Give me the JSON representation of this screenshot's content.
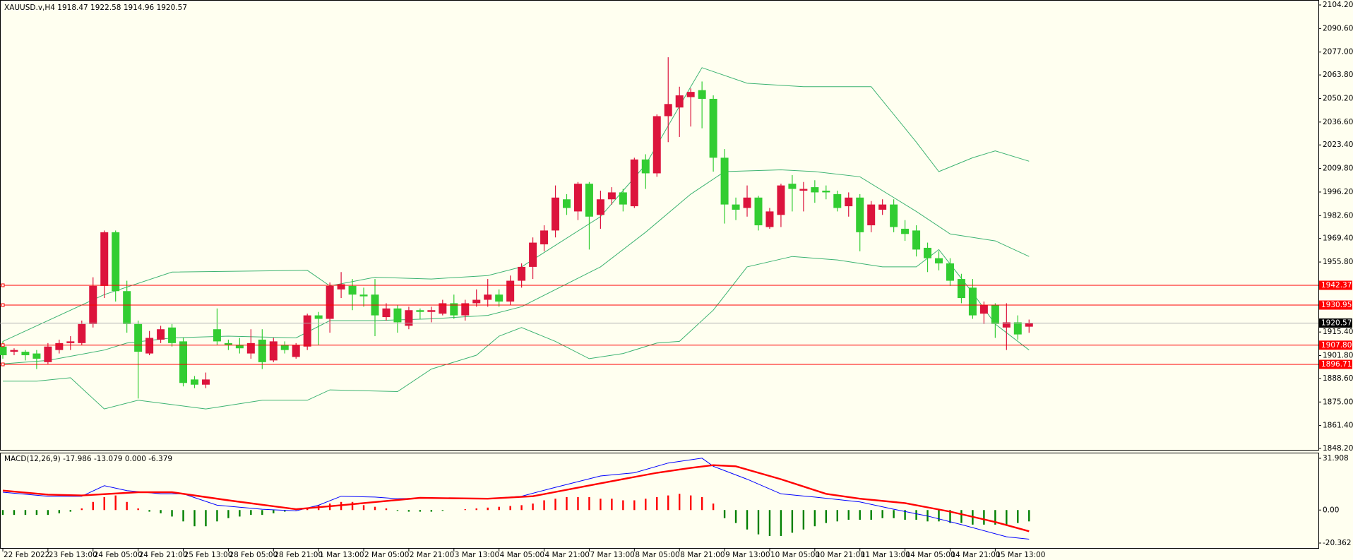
{
  "chart_data": [
    {
      "type": "candlestick",
      "title": "XAUUSD.v,H4  1918.47 1922.58 1914.96 1920.57",
      "categories": [
        "22 Feb 2022",
        null,
        null,
        null,
        "23 Feb 13:00",
        null,
        null,
        null,
        "24 Feb 05:00",
        null,
        null,
        null,
        "24 Feb 21:00",
        null,
        null,
        null,
        "25 Feb 13:00",
        null,
        null,
        null,
        "28 Feb 05:00",
        null,
        null,
        null,
        "28 Feb 21:00",
        null,
        null,
        null,
        "1 Mar 13:00",
        null,
        null,
        null,
        "2 Mar 05:00",
        null,
        null,
        null,
        "2 Mar 21:00",
        null,
        null,
        null,
        "3 Mar 13:00",
        null,
        null,
        null,
        "4 Mar 05:00",
        null,
        null,
        null,
        "4 Mar 21:00",
        null,
        null,
        null,
        "7 Mar 13:00",
        null,
        null,
        null,
        "8 Mar 05:00",
        null,
        null,
        null,
        "8 Mar 21:00",
        null,
        null,
        null,
        "9 Mar 13:00",
        null,
        null,
        null,
        "10 Mar 05:00",
        null,
        null,
        null,
        "10 Mar 21:00",
        null,
        null,
        null,
        "11 Mar 13:00",
        null,
        null,
        null,
        "14 Mar 05:00",
        null,
        null,
        null,
        "14 Mar 21:00",
        null,
        null,
        null,
        "15 Mar 13:00",
        null,
        null,
        null
      ],
      "open": [
        1907,
        1904,
        1904,
        1903,
        1898,
        1905,
        1909,
        1909,
        1920,
        1942,
        1973,
        1939,
        1920,
        1903,
        1911,
        1918,
        1910,
        1888,
        1885,
        1917,
        1909,
        1908,
        1903,
        1911,
        1899,
        1908,
        1901,
        1907,
        1925,
        1923,
        1940,
        1942,
        1937,
        1937,
        1924,
        1929,
        1919,
        1928,
        1927,
        1926,
        1932,
        1925,
        1932,
        1934,
        1937,
        1933,
        1945,
        1953,
        1966,
        1974,
        1992,
        1985,
        2001,
        1983,
        1992,
        1996,
        1988,
        2015,
        2007,
        2040,
        2045,
        2051,
        2055,
        2050,
        2016,
        1989,
        1987,
        1993,
        1976,
        1983,
        2001,
        1997,
        1999,
        1997,
        1995,
        1988,
        1993,
        1977,
        1986,
        1989,
        1975,
        1974,
        1964,
        1958,
        1955,
        1946,
        1941,
        1926,
        1931,
        1918,
        1921,
        1918.47
      ],
      "high": [
        1910,
        1906,
        1905,
        1905,
        1909,
        1911,
        1913,
        1922,
        1947,
        1974,
        1974,
        1945,
        1922,
        1916,
        1919,
        1920,
        1912,
        1890,
        1892,
        1929,
        1911,
        1912,
        1917,
        1917,
        1912,
        1910,
        1909,
        1926,
        1927,
        1944,
        1950,
        1946,
        1941,
        1946,
        1932,
        1931,
        1930,
        1929,
        1930,
        1934,
        1937,
        1934,
        1940,
        1946,
        1940,
        1948,
        1955,
        1970,
        1977,
        2000,
        1995,
        2002,
        2002,
        1997,
        1999,
        1998,
        2016,
        2018,
        2041,
        2074,
        2057,
        2056,
        2060,
        2052,
        2021,
        1993,
        2000,
        1994,
        1987,
        2001,
        2006,
        2002,
        2003,
        2000,
        1997,
        1996,
        1995,
        1991,
        1992,
        1992,
        1980,
        1977,
        1967,
        1962,
        1958,
        1949,
        1946,
        1933,
        1932,
        1932,
        1925,
        1922.58
      ],
      "low": [
        1900,
        1902,
        1899,
        1894,
        1897,
        1903,
        1905,
        1908,
        1918,
        1935,
        1933,
        1915,
        1877,
        1902,
        1909,
        1907,
        1884,
        1883,
        1883,
        1908,
        1905,
        1903,
        1900,
        1894,
        1898,
        1903,
        1900,
        1905,
        1908,
        1915,
        1935,
        1928,
        1930,
        1913,
        1922,
        1915,
        1917,
        1923,
        1921,
        1925,
        1923,
        1922,
        1930,
        1930,
        1930,
        1931,
        1941,
        1946,
        1962,
        1970,
        1983,
        1980,
        1963,
        1975,
        1989,
        1985,
        1987,
        1998,
        2005,
        2025,
        2028,
        2034,
        2033,
        2008,
        1978,
        1980,
        1982,
        1974,
        1975,
        1976,
        1985,
        1985,
        1990,
        1992,
        1985,
        1982,
        1962,
        1973,
        1983,
        1973,
        1968,
        1959,
        1950,
        1951,
        1942,
        1932,
        1923,
        1920,
        1912,
        1905,
        1911,
        1914.96
      ],
      "close": [
        1902,
        1905,
        1902,
        1900,
        1907,
        1909,
        1910,
        1920,
        1942,
        1973,
        1939,
        1920,
        1904,
        1912,
        1917,
        1909,
        1886,
        1885,
        1888,
        1910,
        1908,
        1906,
        1909,
        1898,
        1910,
        1905,
        1908,
        1925,
        1923,
        1942,
        1943,
        1937,
        1936,
        1925,
        1929,
        1921,
        1928,
        1927,
        1928,
        1932,
        1925,
        1932,
        1934,
        1937,
        1933,
        1945,
        1953,
        1967,
        1974,
        1993,
        1987,
        2001,
        1982,
        1992,
        1996,
        1989,
        2015,
        2007,
        2040,
        2047,
        2052,
        2054,
        2050,
        2016,
        1989,
        1986,
        1993,
        1977,
        1985,
        2000,
        1998,
        1998,
        1996,
        1996,
        1987,
        1993,
        1973,
        1989,
        1989,
        1976,
        1972,
        1963,
        1958,
        1955,
        1945,
        1935,
        1925,
        1931,
        1920,
        1921,
        1914,
        1920.57
      ],
      "up_color": "#dc143c",
      "down_color": "#32cd32",
      "bands": [
        {
          "color": "#3cb371",
          "x": [
            0,
            9,
            15,
            27,
            29,
            33,
            38,
            43,
            46,
            53,
            57,
            61,
            62,
            66,
            71,
            77,
            81,
            83,
            86,
            88,
            91
          ],
          "values": [
            1910,
            1937,
            1950,
            1951,
            1942,
            1947,
            1946,
            1948,
            1953,
            1982,
            2012,
            2057,
            2068,
            2059,
            2057,
            2057,
            2025,
            2008,
            2016,
            2020,
            2014
          ]
        },
        {
          "color": "#3cb371",
          "x": [
            0,
            4,
            9,
            11,
            15,
            20,
            26,
            29,
            33,
            38,
            43,
            46,
            53,
            57,
            61,
            64,
            69,
            72,
            76,
            81,
            84,
            88,
            91
          ],
          "values": [
            1897,
            1899,
            1905,
            1909,
            1912,
            1913,
            1912,
            1922,
            1922,
            1923,
            1925,
            1930,
            1953,
            1973,
            1995,
            2008,
            2009,
            2008,
            2005,
            1985,
            1972,
            1968,
            1959
          ]
        },
        {
          "color": "#3cb371",
          "x": [
            0,
            3,
            6,
            9,
            12,
            18,
            23,
            27,
            29,
            35,
            38,
            42,
            44,
            46,
            49,
            52,
            55,
            58,
            60,
            63,
            66,
            70,
            74,
            78,
            81,
            83,
            86,
            88,
            91
          ],
          "values": [
            1887,
            1887,
            1889,
            1871,
            1876,
            1871,
            1876,
            1876,
            1882,
            1881,
            1894,
            1902,
            1913,
            1918,
            1910,
            1900,
            1903,
            1909,
            1910,
            1928,
            1953,
            1959,
            1957,
            1953,
            1953,
            1963,
            1938,
            1920,
            1905
          ]
        }
      ],
      "levels": [
        1942.37,
        1930.95,
        {
          "value": 1907.8,
          "label": "1907.80"
        },
        1896.71
      ],
      "level_color": "#ff0000",
      "current": 1920.57,
      "ylim": [
        1848.2,
        2104.2
      ],
      "yticks": [
        {
          "value": 2104.2,
          "label": "2104.20"
        },
        {
          "value": 2090.6,
          "label": "2090.60"
        },
        {
          "value": 2077,
          "label": "2077.00"
        },
        {
          "value": 2063.8,
          "label": "2063.80"
        },
        {
          "value": 2050.2,
          "label": "2050.20"
        },
        {
          "value": 2036.6,
          "label": "2036.60"
        },
        {
          "value": 2023.4,
          "label": "2023.40"
        },
        {
          "value": 2009.8,
          "label": "2009.80"
        },
        {
          "value": 1996.2,
          "label": "1996.20"
        },
        {
          "value": 1982.6,
          "label": "1982.60"
        },
        {
          "value": 1969.4,
          "label": "1969.40"
        },
        {
          "value": 1955.8,
          "label": "1955.80"
        },
        {
          "value": 1915.4,
          "label": "1915.40"
        },
        {
          "value": 1901.8,
          "label": "1901.80"
        },
        {
          "value": 1888.6,
          "label": "1888.60"
        },
        {
          "value": 1875,
          "label": "1875.00"
        },
        {
          "value": 1861.4,
          "label": "1861.40"
        },
        {
          "value": 1848.2,
          "label": "1848.20"
        }
      ]
    },
    {
      "type": "macd",
      "title": "MACD(12,26,9) -17.986 -13.079 0.000 -6.379",
      "histogram": {
        "up_color": "#ff0000",
        "down_color": "#008000",
        "values": [
          -3,
          -3,
          -3,
          -3,
          -3,
          -2,
          -1,
          1,
          5,
          8,
          9,
          5,
          1,
          -1,
          -2,
          -4,
          -7,
          -10,
          -10,
          -7,
          -5,
          -4,
          -3,
          -3,
          -2,
          -1,
          0.5,
          1.5,
          3,
          4,
          5,
          5,
          3,
          2,
          1,
          -0.5,
          -1,
          -1,
          -1,
          -0.5,
          0,
          0.5,
          1,
          1.5,
          2,
          2.5,
          3,
          4,
          6,
          7,
          8,
          8,
          8,
          7,
          7,
          6,
          6,
          7,
          8,
          9,
          10,
          9,
          8,
          4,
          -5,
          -8,
          -12,
          -15,
          -16,
          -16,
          -14,
          -12,
          -10,
          -8,
          -7,
          -6,
          -6,
          -6,
          -5,
          -5,
          -6,
          -6,
          -7,
          -7,
          -8,
          -8,
          -9,
          -9,
          -9,
          -9,
          -8,
          -7
        ]
      },
      "series": [
        {
          "color": "#0000ff",
          "x": [
            0,
            4,
            7,
            9,
            11,
            14,
            16,
            19,
            23,
            26,
            28,
            30,
            33,
            35,
            38,
            43,
            46,
            49,
            53,
            56,
            59,
            62,
            63,
            66,
            69,
            72,
            76,
            79,
            82,
            85,
            89,
            91
          ],
          "values": [
            11,
            8.5,
            8.5,
            15,
            12,
            10,
            10,
            3,
            0.5,
            -0.5,
            3,
            8.5,
            8,
            7,
            7.5,
            7,
            8.5,
            14,
            21,
            23,
            29,
            32,
            27,
            19,
            10,
            8,
            5,
            0.5,
            -3.7,
            -9,
            -16.5,
            -17.986
          ]
        },
        {
          "color": "#ff0000",
          "x": [
            0,
            4,
            7,
            12,
            15,
            20,
            26,
            30,
            37,
            43,
            47,
            53,
            58,
            61,
            63,
            65,
            69,
            73,
            76,
            80,
            84,
            88,
            91
          ],
          "values": [
            12,
            9.5,
            9,
            11,
            11,
            6,
            0.5,
            3,
            7.5,
            7,
            8.5,
            16.5,
            23,
            26,
            27.7,
            27,
            19,
            10,
            7,
            4.3,
            -1,
            -7.4,
            -13.079
          ]
        }
      ],
      "ylim": [
        -20.362,
        31.908
      ],
      "yticks": [
        31.908,
        {
          "value": 0,
          "label": "0.00"
        },
        -20.362
      ]
    }
  ]
}
